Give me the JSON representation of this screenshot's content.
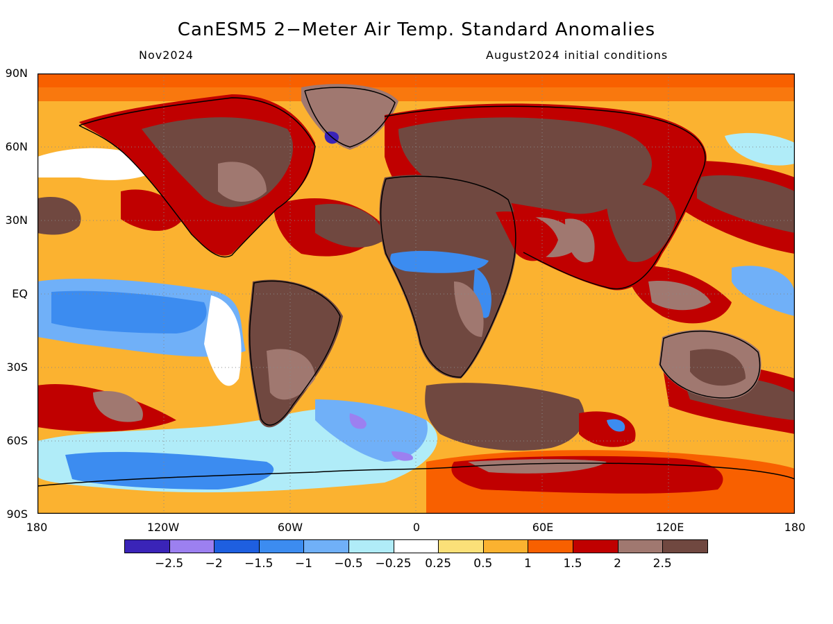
{
  "header": {
    "title": "CanESM5 2−Meter Air Temp. Standard Anomalies",
    "left_subtitle": "Nov2024",
    "right_subtitle": "August2024 initial conditions"
  },
  "axes": {
    "y_ticks": [
      "90N",
      "60N",
      "30N",
      "EQ",
      "30S",
      "60S",
      "90S"
    ],
    "x_ticks": [
      "180",
      "120W",
      "60W",
      "0",
      "60E",
      "120E",
      "180"
    ]
  },
  "colorbar": {
    "colors": [
      "#3a24b8",
      "#9c80f0",
      "#1e5fe0",
      "#3c8cf0",
      "#70b0f8",
      "#b0ecf8",
      "#ffffff",
      "#fbe078",
      "#fbb230",
      "#f86000",
      "#c00000",
      "#a07870",
      "#704840"
    ],
    "labels": [
      "−2.5",
      "−2",
      "−1.5",
      "−1",
      "−0.5",
      "−0.25",
      "0.25",
      "0.5",
      "1",
      "1.5",
      "2",
      "2.5"
    ]
  },
  "map": {
    "ocean_default": "#fbb230",
    "land_default": "#704840"
  }
}
